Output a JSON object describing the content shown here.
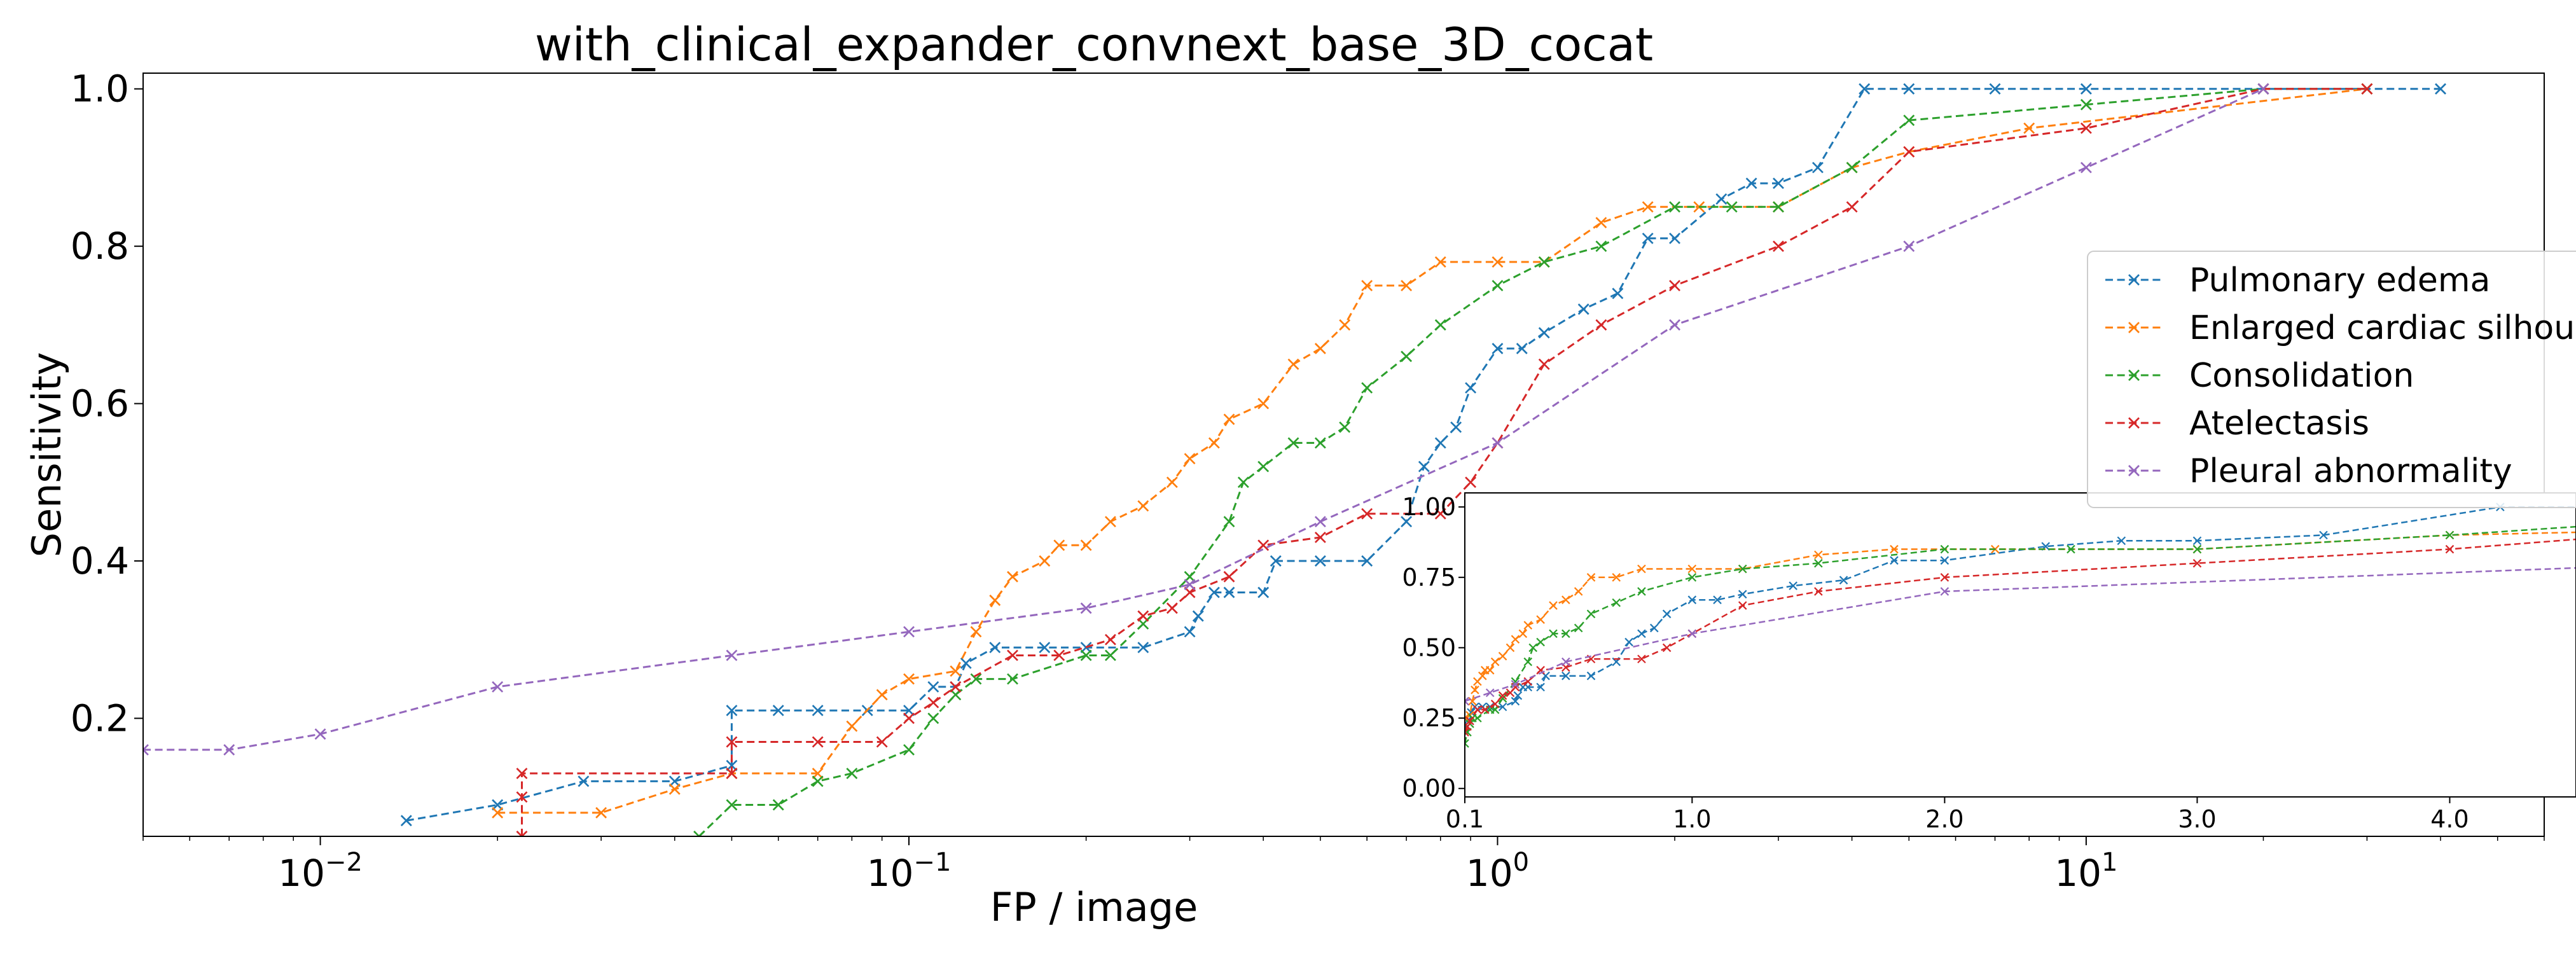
{
  "chart_data": {
    "type": "line",
    "title": "with_clinical_expander_convnext_base_3D_cocat",
    "xlabel": "FP / image",
    "ylabel": "Sensitivity",
    "xscale": "log",
    "xlim": [
      0.005,
      60
    ],
    "ylim": [
      0.05,
      1.02
    ],
    "x_ticks": [
      {
        "value": 0.01,
        "label": "10",
        "exp": "−2"
      },
      {
        "value": 0.1,
        "label": "10",
        "exp": "−1"
      },
      {
        "value": 1,
        "label": "10",
        "exp": "0"
      },
      {
        "value": 10,
        "label": "10",
        "exp": "1"
      }
    ],
    "y_ticks": [
      {
        "value": 0.2,
        "label": "0.2"
      },
      {
        "value": 0.4,
        "label": "0.4"
      },
      {
        "value": 0.6,
        "label": "0.6"
      },
      {
        "value": 0.8,
        "label": "0.8"
      },
      {
        "value": 1.0,
        "label": "1.0"
      }
    ],
    "grid": false,
    "legend_position": "right",
    "line_style": "dashed",
    "marker": "x",
    "series": [
      {
        "name": "Pulmonary edema",
        "color": "#1f77b4",
        "x": [
          0.014,
          0.02,
          0.028,
          0.04,
          0.05,
          0.05,
          0.06,
          0.07,
          0.085,
          0.1,
          0.11,
          0.12,
          0.125,
          0.14,
          0.17,
          0.2,
          0.25,
          0.3,
          0.31,
          0.33,
          0.35,
          0.4,
          0.42,
          0.5,
          0.6,
          0.7,
          0.75,
          0.8,
          0.85,
          0.9,
          1.0,
          1.1,
          1.2,
          1.4,
          1.6,
          1.8,
          2.0,
          2.4,
          2.7,
          3.0,
          3.5,
          4.2,
          5.0,
          7.0,
          10.0,
          20.0,
          40.0
        ],
        "y": [
          0.07,
          0.09,
          0.12,
          0.12,
          0.14,
          0.21,
          0.21,
          0.21,
          0.21,
          0.21,
          0.24,
          0.24,
          0.27,
          0.29,
          0.29,
          0.29,
          0.29,
          0.31,
          0.33,
          0.36,
          0.36,
          0.36,
          0.4,
          0.4,
          0.4,
          0.45,
          0.52,
          0.55,
          0.57,
          0.62,
          0.67,
          0.67,
          0.69,
          0.72,
          0.74,
          0.81,
          0.81,
          0.86,
          0.88,
          0.88,
          0.9,
          1.0,
          1.0,
          1.0,
          1.0,
          1.0,
          1.0
        ]
      },
      {
        "name": "Enlarged cardiac silhouette",
        "color": "#ff7f0e",
        "x": [
          0.02,
          0.03,
          0.04,
          0.05,
          0.07,
          0.08,
          0.09,
          0.1,
          0.12,
          0.13,
          0.14,
          0.15,
          0.17,
          0.18,
          0.2,
          0.22,
          0.25,
          0.28,
          0.3,
          0.33,
          0.35,
          0.4,
          0.45,
          0.5,
          0.55,
          0.6,
          0.7,
          0.8,
          1.0,
          1.2,
          1.5,
          1.8,
          2.2,
          3.0,
          4.0,
          5.0,
          8.0,
          30.0
        ],
        "y": [
          0.08,
          0.08,
          0.11,
          0.13,
          0.13,
          0.19,
          0.23,
          0.25,
          0.26,
          0.31,
          0.35,
          0.38,
          0.4,
          0.42,
          0.42,
          0.45,
          0.47,
          0.5,
          0.53,
          0.55,
          0.58,
          0.6,
          0.65,
          0.67,
          0.7,
          0.75,
          0.75,
          0.78,
          0.78,
          0.78,
          0.83,
          0.85,
          0.85,
          0.85,
          0.9,
          0.92,
          0.95,
          1.0
        ]
      },
      {
        "name": "Consolidation",
        "color": "#2ca02c",
        "x": [
          0.044,
          0.05,
          0.06,
          0.07,
          0.08,
          0.1,
          0.11,
          0.12,
          0.13,
          0.15,
          0.2,
          0.22,
          0.25,
          0.3,
          0.35,
          0.37,
          0.4,
          0.45,
          0.5,
          0.55,
          0.6,
          0.7,
          0.8,
          1.0,
          1.2,
          1.5,
          2.0,
          2.5,
          3.0,
          4.0,
          5.0,
          10.0,
          20.0,
          30.0
        ],
        "y": [
          0.05,
          0.09,
          0.09,
          0.12,
          0.13,
          0.16,
          0.2,
          0.23,
          0.25,
          0.25,
          0.28,
          0.28,
          0.32,
          0.38,
          0.45,
          0.5,
          0.52,
          0.55,
          0.55,
          0.57,
          0.62,
          0.66,
          0.7,
          0.75,
          0.78,
          0.8,
          0.85,
          0.85,
          0.85,
          0.9,
          0.96,
          0.98,
          1.0,
          1.0
        ]
      },
      {
        "name": "Atelectasis",
        "color": "#d62728",
        "x": [
          0.022,
          0.022,
          0.022,
          0.05,
          0.05,
          0.07,
          0.09,
          0.1,
          0.11,
          0.12,
          0.15,
          0.18,
          0.22,
          0.25,
          0.28,
          0.3,
          0.35,
          0.4,
          0.5,
          0.6,
          0.8,
          0.9,
          1.0,
          1.2,
          1.5,
          2.0,
          3.0,
          4.0,
          5.0,
          10.0,
          20.0,
          30.0
        ],
        "y": [
          0.05,
          0.1,
          0.13,
          0.13,
          0.17,
          0.17,
          0.17,
          0.2,
          0.22,
          0.24,
          0.28,
          0.28,
          0.3,
          0.33,
          0.34,
          0.36,
          0.38,
          0.42,
          0.43,
          0.46,
          0.46,
          0.5,
          0.55,
          0.65,
          0.7,
          0.75,
          0.8,
          0.85,
          0.92,
          0.95,
          1.0,
          1.0
        ]
      },
      {
        "name": "Pleural abnormality",
        "color": "#9467bd",
        "x": [
          0.005,
          0.007,
          0.01,
          0.02,
          0.05,
          0.1,
          0.2,
          0.3,
          0.5,
          1.0,
          2.0,
          5.0,
          10.0,
          20.0
        ],
        "y": [
          0.16,
          0.16,
          0.18,
          0.24,
          0.28,
          0.31,
          0.34,
          0.37,
          0.45,
          0.55,
          0.7,
          0.8,
          0.9,
          1.0
        ]
      }
    ],
    "inset": {
      "xscale": "linear",
      "xlim": [
        0.1,
        4.5
      ],
      "ylim": [
        -0.03,
        1.05
      ],
      "x_ticks": [
        {
          "value": 0.1,
          "label": "0.1"
        },
        {
          "value": 1.0,
          "label": "1.0"
        },
        {
          "value": 2.0,
          "label": "2.0"
        },
        {
          "value": 3.0,
          "label": "3.0"
        },
        {
          "value": 4.0,
          "label": "4.0"
        }
      ],
      "y_ticks": [
        {
          "value": 0.0,
          "label": "0.00"
        },
        {
          "value": 0.25,
          "label": "0.25"
        },
        {
          "value": 0.5,
          "label": "0.50"
        },
        {
          "value": 0.75,
          "label": "0.75"
        },
        {
          "value": 1.0,
          "label": "1.00"
        }
      ]
    }
  }
}
